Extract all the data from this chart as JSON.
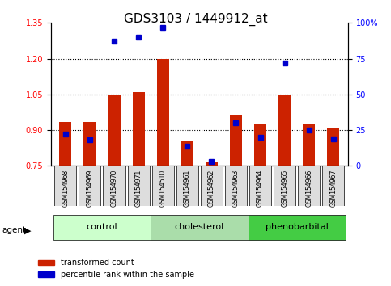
{
  "title": "GDS3103 / 1449912_at",
  "samples": [
    "GSM154968",
    "GSM154969",
    "GSM154970",
    "GSM154971",
    "GSM154510",
    "GSM154961",
    "GSM154962",
    "GSM154963",
    "GSM154964",
    "GSM154965",
    "GSM154966",
    "GSM154967"
  ],
  "transformed_count": [
    0.935,
    0.935,
    1.05,
    1.06,
    1.2,
    0.855,
    0.765,
    0.965,
    0.925,
    1.05,
    0.925,
    0.91
  ],
  "percentile_rank": [
    22,
    18,
    87,
    90,
    97,
    14,
    3,
    30,
    20,
    72,
    25,
    19
  ],
  "groups": [
    {
      "label": "control",
      "start": 0,
      "end": 4,
      "color": "#ccffcc"
    },
    {
      "label": "cholesterol",
      "start": 4,
      "end": 8,
      "color": "#aaddaa"
    },
    {
      "label": "phenobarbital",
      "start": 8,
      "end": 12,
      "color": "#44cc44"
    }
  ],
  "ylim_left": [
    0.75,
    1.35
  ],
  "ylim_right": [
    0,
    100
  ],
  "yticks_left": [
    0.75,
    0.9,
    1.05,
    1.2,
    1.35
  ],
  "yticks_right": [
    0,
    25,
    50,
    75,
    100
  ],
  "ytick_labels_right": [
    "0",
    "25",
    "50",
    "75",
    "100%"
  ],
  "hlines": [
    0.9,
    1.05,
    1.2
  ],
  "bar_color": "#cc2200",
  "dot_color": "#0000cc",
  "bar_width": 0.5,
  "sample_box_color": "#dddddd",
  "title_fontsize": 11,
  "tick_fontsize": 7,
  "label_fontsize": 8,
  "sample_fontsize": 5.5
}
